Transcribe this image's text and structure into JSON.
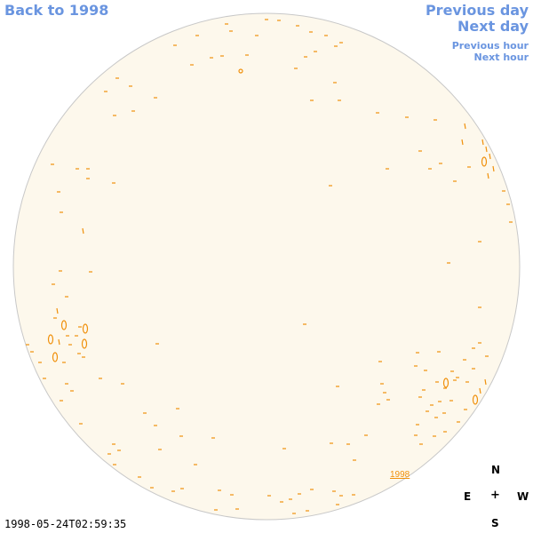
{
  "nav": {
    "back": "Back to 1998",
    "previous_day": "Previous day",
    "next_day": "Next day",
    "previous_hour": "Previous hour",
    "next_hour": "Next hour"
  },
  "disk": {
    "year_label": "1998",
    "colors": {
      "disk_fill": "#fdf8ec",
      "disk_outline": "#c8c8c8",
      "contour": "#f0900c"
    }
  },
  "compass": {
    "north": "N",
    "east": "E",
    "center": "+",
    "west": "W",
    "south": "S"
  },
  "timestamp": "1998-05-24T02:59:35"
}
